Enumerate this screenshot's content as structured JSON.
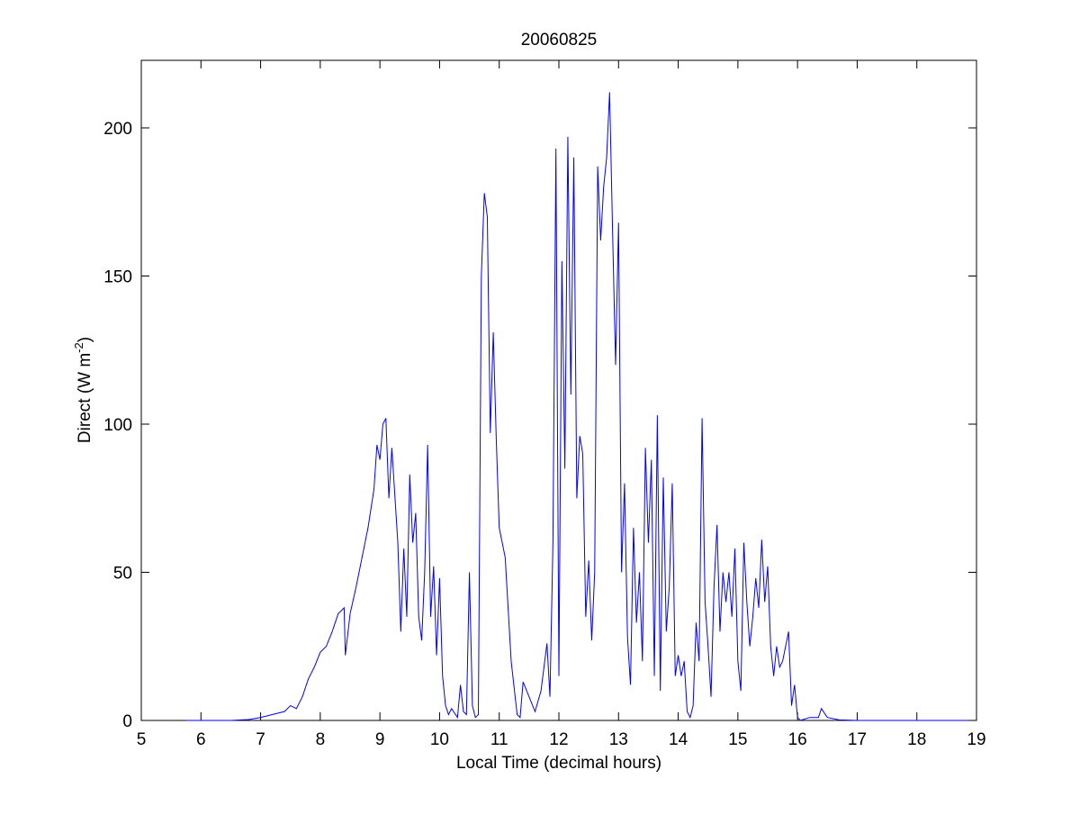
{
  "chart_data": {
    "type": "line",
    "title": "20060825",
    "xlabel": "Local Time (decimal hours)",
    "ylabel": [
      "Direct (W m",
      "-2",
      ")"
    ],
    "xlim": [
      5,
      19
    ],
    "xticks": [
      5,
      6,
      7,
      8,
      9,
      10,
      11,
      12,
      13,
      14,
      15,
      16,
      17,
      18,
      19
    ],
    "ylim": [
      0,
      222.8
    ],
    "yticks": [
      0,
      50,
      100,
      150,
      200
    ],
    "grid": false,
    "series": [
      {
        "color": "#0000ff",
        "x": [
          5.75,
          6.5,
          6.8,
          7.0,
          7.2,
          7.4,
          7.5,
          7.6,
          7.7,
          7.8,
          7.9,
          8.0,
          8.1,
          8.2,
          8.3,
          8.4,
          8.42,
          8.5,
          8.6,
          8.7,
          8.8,
          8.9,
          8.95,
          9.0,
          9.05,
          9.1,
          9.15,
          9.2,
          9.3,
          9.35,
          9.4,
          9.45,
          9.5,
          9.55,
          9.6,
          9.65,
          9.7,
          9.75,
          9.8,
          9.85,
          9.9,
          9.95,
          10.0,
          10.05,
          10.1,
          10.15,
          10.2,
          10.3,
          10.35,
          10.4,
          10.45,
          10.5,
          10.55,
          10.6,
          10.65,
          10.7,
          10.75,
          10.8,
          10.85,
          10.9,
          10.95,
          11.0,
          11.1,
          11.2,
          11.3,
          11.35,
          11.4,
          11.5,
          11.6,
          11.7,
          11.8,
          11.85,
          11.9,
          11.95,
          12.0,
          12.05,
          12.1,
          12.15,
          12.2,
          12.25,
          12.3,
          12.35,
          12.4,
          12.45,
          12.5,
          12.55,
          12.6,
          12.65,
          12.7,
          12.75,
          12.8,
          12.85,
          12.9,
          12.95,
          13.0,
          13.05,
          13.1,
          13.15,
          13.2,
          13.25,
          13.3,
          13.35,
          13.4,
          13.45,
          13.5,
          13.55,
          13.6,
          13.65,
          13.7,
          13.75,
          13.8,
          13.85,
          13.9,
          13.95,
          14.0,
          14.05,
          14.1,
          14.15,
          14.2,
          14.25,
          14.3,
          14.35,
          14.4,
          14.45,
          14.5,
          14.55,
          14.6,
          14.65,
          14.7,
          14.75,
          14.8,
          14.85,
          14.9,
          14.95,
          15.0,
          15.05,
          15.1,
          15.15,
          15.2,
          15.25,
          15.3,
          15.35,
          15.4,
          15.45,
          15.5,
          15.55,
          15.6,
          15.65,
          15.7,
          15.75,
          15.8,
          15.85,
          15.9,
          15.95,
          16.0,
          16.05,
          16.2,
          16.35,
          16.4,
          16.5,
          16.7,
          17.0,
          18.0,
          18.85
        ],
        "values": [
          0,
          0,
          0.3,
          1,
          2,
          3,
          5,
          4,
          8,
          14,
          18,
          23,
          25,
          30,
          36,
          38,
          22,
          36,
          45,
          55,
          65,
          78,
          93,
          88,
          100,
          102,
          75,
          92,
          60,
          30,
          58,
          35,
          83,
          60,
          70,
          35,
          27,
          50,
          93,
          35,
          52,
          22,
          48,
          15,
          5,
          2,
          4,
          1,
          12,
          3,
          2,
          50,
          5,
          1,
          2,
          150,
          178,
          170,
          97,
          131,
          95,
          65,
          55,
          20,
          2,
          1,
          13,
          8,
          3,
          10,
          26,
          8,
          60,
          193,
          15,
          155,
          85,
          197,
          110,
          190,
          75,
          96,
          90,
          35,
          54,
          27,
          50,
          187,
          162,
          180,
          190,
          212,
          165,
          120,
          168,
          50,
          80,
          28,
          12,
          65,
          33,
          50,
          20,
          92,
          60,
          88,
          15,
          103,
          10,
          82,
          30,
          45,
          80,
          15,
          22,
          15,
          20,
          3,
          1,
          5,
          33,
          20,
          102,
          40,
          25,
          8,
          45,
          66,
          30,
          50,
          40,
          50,
          35,
          58,
          20,
          10,
          60,
          40,
          25,
          35,
          48,
          38,
          61,
          40,
          52,
          25,
          15,
          25,
          18,
          20,
          25,
          30,
          5,
          12,
          1,
          0,
          1,
          1,
          4,
          1,
          0.2,
          0,
          0,
          0
        ]
      }
    ]
  }
}
